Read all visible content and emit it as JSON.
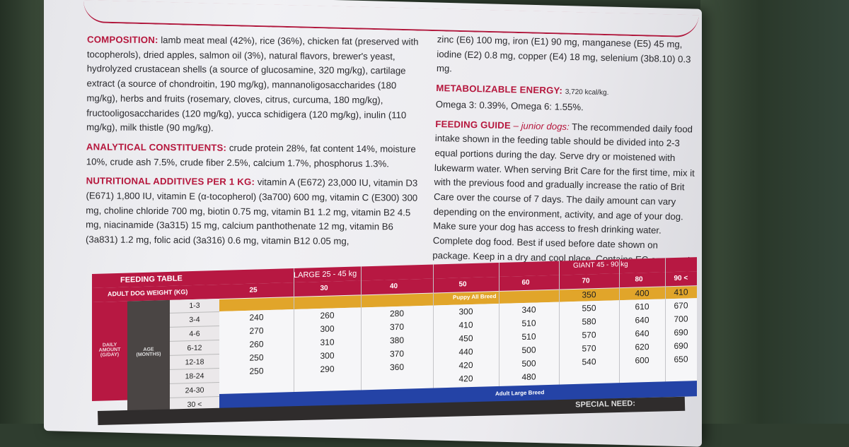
{
  "composition": {
    "heading": "COMPOSITION:",
    "text": "lamb meat meal (42%), rice (36%), chicken fat (preserved with tocopherols), dried apples, salmon oil (3%), natural flavors, brewer's yeast, hydrolyzed crustacean shells (a source of glucosamine, 320 mg/kg), cartilage extract (a source of chondroitin, 190 mg/kg), mannanoligosaccharides (180 mg/kg), herbs and fruits (rosemary, cloves, citrus, curcuma, 180 mg/kg), fructooligosaccharides (120 mg/kg), yucca schidigera (120 mg/kg), inulin (110 mg/kg), milk thistle (90 mg/kg)."
  },
  "analytical": {
    "heading": "ANALYTICAL CONSTITUENTS:",
    "text": "crude protein 28%, fat content 14%, moisture 10%, crude ash 7.5%, crude fiber 2.5%, calcium 1.7%, phosphorus 1.3%."
  },
  "additives": {
    "heading": "NUTRITIONAL ADDITIVES PER 1 KG:",
    "text": "vitamin A (E672) 23,000 IU, vitamin D3 (E671) 1,800 IU, vitamin E (α-tocopherol) (3a700) 600 mg, vitamin C (E300) 300 mg, choline chloride 700 mg, biotin 0.75 mg, vitamin B1 1.2 mg, vitamin B2 4.5 mg, niacinamide (3a315) 15 mg, calcium panthothenate 12 mg, vitamin B6 (3a831) 1.2 mg, folic acid (3a316) 0.6 mg, vitamin B12 0.05 mg,"
  },
  "minerals": {
    "text": "zinc (E6) 100 mg, iron (E1) 90 mg, manganese (E5) 45 mg, iodine (E2) 0.8 mg, copper (E4) 18 mg, selenium (3b8.10) 0.3 mg."
  },
  "energy": {
    "heading": "METABOLIZABLE ENERGY:",
    "value": "3,720 kcal/kg.",
    "omega": "Omega 3: 0.39%, Omega 6: 1.55%."
  },
  "feeding_guide": {
    "heading": "FEEDING GUIDE",
    "subheading": "– junior dogs:",
    "text": "The recommended daily food intake shown in the feeding table should be divided into 2-3 equal portions during the day. Serve dry or moistened with lukewarm water. When serving Brit Care for the first time, mix it with the previous food and gradually increase the ratio of Brit Care over the course of 7 days. The daily amount can vary depending on the environment, activity, and age of your dog. Make sure your dog has access to fresh drinking water.",
    "note": "Complete dog food. Best if used before date shown on package. Keep in a dry and cool place. Contains EC approved antioxidants."
  },
  "table": {
    "title": "FEEDING TABLE",
    "weight_label": "ADULT DOG WEIGHT (KG)",
    "large_label": "LARGE 25 - 45 kg",
    "giant_label": "GIANT 45 - 90 kg",
    "daily_amount_label": "DAILY AMOUNT (G/DAY)",
    "age_label": "AGE (MONTHS)",
    "puppy_band": "Puppy All Breed",
    "adult_band": "Adult Large Breed",
    "weights": [
      "25",
      "30",
      "40",
      "50",
      "60",
      "70",
      "80",
      "90 <"
    ],
    "ages": [
      "1-3",
      "3-4",
      "4-6",
      "6-12",
      "12-18",
      "18-24",
      "24-30",
      "30 <"
    ],
    "rows": [
      [
        "",
        "",
        "",
        "",
        "",
        "350",
        "400",
        "410"
      ],
      [
        "240",
        "260",
        "280",
        "300",
        "340",
        "550",
        "610",
        "670"
      ],
      [
        "270",
        "300",
        "370",
        "410",
        "510",
        "580",
        "640",
        "700"
      ],
      [
        "260",
        "310",
        "380",
        "450",
        "510",
        "570",
        "640",
        "690"
      ],
      [
        "250",
        "300",
        "370",
        "440",
        "500",
        "570",
        "620",
        "690"
      ],
      [
        "250",
        "290",
        "360",
        "420",
        "500",
        "540",
        "600",
        "650"
      ],
      [
        "",
        "",
        "",
        "420",
        "480",
        "",
        "",
        ""
      ]
    ]
  },
  "bottom_strip": "SPECIAL NEED:"
}
